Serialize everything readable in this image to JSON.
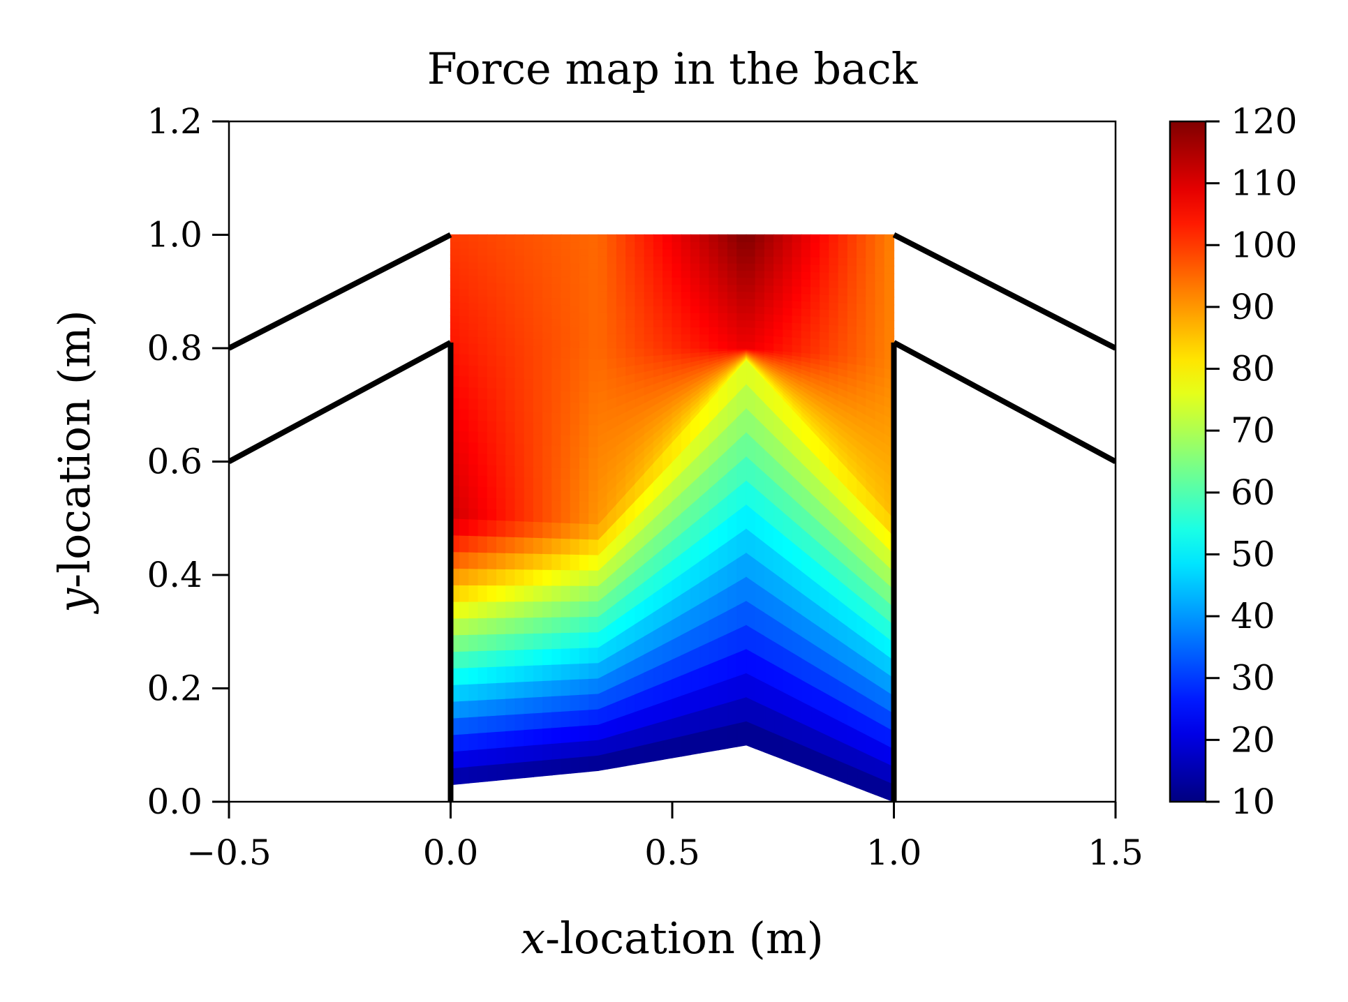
{
  "chart_data": {
    "type": "heatmap",
    "title": "Force map in the back",
    "xlabel": "x-location (m)",
    "ylabel": "y-location (m)",
    "xlim": [
      -0.5,
      1.5
    ],
    "ylim": [
      0.0,
      1.2
    ],
    "x_ticks": [
      "−0.5",
      "0.0",
      "0.5",
      "1.0",
      "1.5"
    ],
    "x_tick_values": [
      -0.5,
      0.0,
      0.5,
      1.0,
      1.5
    ],
    "y_ticks": [
      "0.0",
      "0.2",
      "0.4",
      "0.6",
      "0.8",
      "1.0",
      "1.2"
    ],
    "y_tick_values": [
      0.0,
      0.2,
      0.4,
      0.6,
      0.8,
      1.0,
      1.2
    ],
    "colorbar": {
      "min": 10,
      "max": 120,
      "colormap": "jet",
      "ticks": [
        "10",
        "20",
        "30",
        "40",
        "50",
        "60",
        "70",
        "80",
        "90",
        "100",
        "110",
        "120"
      ],
      "tick_values": [
        10,
        20,
        30,
        40,
        50,
        60,
        70,
        80,
        90,
        100,
        110,
        120
      ]
    },
    "grid": false,
    "mesh_x": [
      0.0,
      0.333,
      0.667,
      1.0
    ],
    "mesh_y": [
      [
        0.03,
        0.5,
        0.81,
        1.0
      ],
      [
        0.055,
        0.49,
        0.8,
        1.0
      ],
      [
        0.1,
        0.78,
        0.8,
        1.0
      ],
      [
        0.0,
        0.5,
        0.78,
        1.0
      ]
    ],
    "force_values": [
      [
        12,
        112,
        104,
        100
      ],
      [
        10,
        90,
        95,
        95
      ],
      [
        10,
        77,
        108,
        120
      ],
      [
        10,
        86,
        92,
        92
      ]
    ],
    "outline_lines": [
      {
        "name": "left-upper-line",
        "x": [
          -0.5,
          0.0
        ],
        "y": [
          0.8,
          1.0
        ]
      },
      {
        "name": "left-lower-line",
        "x": [
          -0.5,
          0.0
        ],
        "y": [
          0.6,
          0.81
        ]
      },
      {
        "name": "right-upper-line",
        "x": [
          1.0,
          1.5
        ],
        "y": [
          1.0,
          0.8
        ]
      },
      {
        "name": "right-lower-line",
        "x": [
          1.0,
          1.5
        ],
        "y": [
          0.81,
          0.6
        ]
      },
      {
        "name": "left-vertical-line",
        "x": [
          0.0,
          0.0
        ],
        "y": [
          0.0,
          0.81
        ]
      },
      {
        "name": "right-vertical-line",
        "x": [
          1.0,
          1.0
        ],
        "y": [
          0.0,
          0.81
        ]
      }
    ]
  }
}
